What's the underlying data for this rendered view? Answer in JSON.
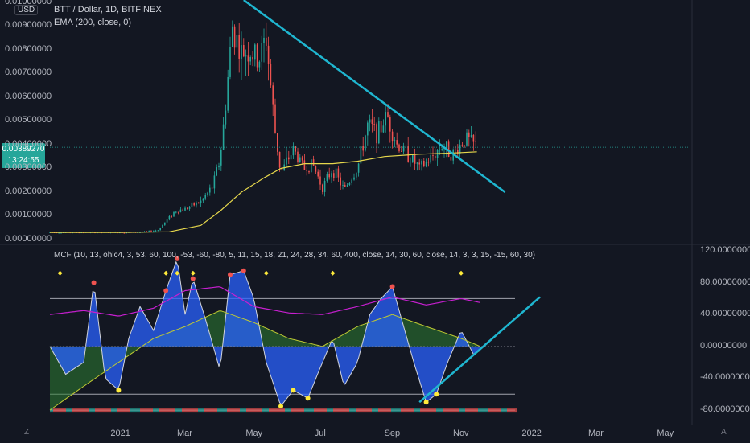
{
  "header": {
    "symbol_title": "BTT / Dollar, 1D, BITFINEX",
    "ema_legend": "EMA (200, close, 0)",
    "currency_tag": "USD",
    "mcf_legend": "MCF (10, 13, ohlc4, 3, 53, 60, 100, -53, -60, -80, 5, 11, 15, 18, 21, 24, 28, 34, 60, 400, close, 14, 30, 60, close, 14, 3, 3, 15, -15, 60, 30)"
  },
  "price_badge": {
    "price": "0.00389270",
    "countdown": "13:24:55"
  },
  "bottom_icons": {
    "left": "Z",
    "right": "A"
  },
  "colors": {
    "background": "#131722",
    "up_candle": "#26a69a",
    "down_candle": "#ef5350",
    "ema": "#e6d74c",
    "trendline": "#1fb6d0",
    "mcf_blue": "#2962ff",
    "mcf_red": "#c62828",
    "mcf_green": "#2e7d32",
    "mcf_magenta": "#c71fd0",
    "marker_yellow": "#ffeb3b"
  },
  "chart_data": [
    {
      "type": "candlestick",
      "title": "BTT / Dollar, 1D, BITFINEX",
      "x_tick_labels": [
        "2021",
        "Mar",
        "May",
        "Jul",
        "Sep",
        "Nov",
        "2022",
        "Mar",
        "May"
      ],
      "x_tick_values": [
        "2021-01-01",
        "2021-03-01",
        "2021-05-01",
        "2021-07-01",
        "2021-09-01",
        "2021-11-01",
        "2022-01-01",
        "2022-03-01",
        "2022-05-01"
      ],
      "y_tick_labels": [
        "0.01000000",
        "0.00900000",
        "0.00800000",
        "0.00700000",
        "0.00600000",
        "0.00500000",
        "0.00400000",
        "0.00300000",
        "0.00200000",
        "0.00100000",
        "0.00000000"
      ],
      "ylim": [
        0.0,
        0.0101
      ],
      "grid": false,
      "price_path": {
        "dates": [
          "2020-11-01",
          "2020-12-01",
          "2020-12-31",
          "2021-01-15",
          "2021-01-25",
          "2021-02-05",
          "2021-02-20",
          "2021-03-01",
          "2021-03-15",
          "2021-03-25",
          "2021-04-01",
          "2021-04-05",
          "2021-04-12",
          "2021-04-20",
          "2021-04-26",
          "2021-05-05",
          "2021-05-12",
          "2021-05-20",
          "2021-05-25",
          "2021-06-05",
          "2021-06-15",
          "2021-06-22",
          "2021-07-01",
          "2021-07-10",
          "2021-07-20",
          "2021-08-01",
          "2021-08-10",
          "2021-08-20",
          "2021-08-27",
          "2021-09-05",
          "2021-09-15",
          "2021-09-25",
          "2021-10-05",
          "2021-10-15",
          "2021-10-25",
          "2021-11-05",
          "2021-11-15"
        ],
        "close": [
          0.0003,
          0.0003,
          0.0003,
          0.0003,
          0.00032,
          0.0004,
          0.0012,
          0.0013,
          0.0016,
          0.0022,
          0.0034,
          0.0052,
          0.009,
          0.0078,
          0.008,
          0.0075,
          0.0085,
          0.0045,
          0.0028,
          0.0038,
          0.003,
          0.0032,
          0.0022,
          0.003,
          0.0021,
          0.003,
          0.0048,
          0.0045,
          0.0053,
          0.004,
          0.0036,
          0.003,
          0.0034,
          0.004,
          0.0036,
          0.0043,
          0.0039
        ]
      },
      "series": [
        {
          "name": "EMA (200, close, 0)",
          "dates": [
            "2020-11-01",
            "2021-01-01",
            "2021-02-15",
            "2021-03-15",
            "2021-04-01",
            "2021-04-20",
            "2021-05-10",
            "2021-05-25",
            "2021-06-15",
            "2021-07-10",
            "2021-08-01",
            "2021-08-25",
            "2021-09-25",
            "2021-10-25",
            "2021-11-15"
          ],
          "values": [
            0.0003,
            0.0003,
            0.00033,
            0.0006,
            0.0012,
            0.002,
            0.0026,
            0.003,
            0.0032,
            0.0032,
            0.0033,
            0.0035,
            0.0036,
            0.00365,
            0.0037
          ]
        }
      ],
      "trendline": {
        "points": [
          [
            "2021-04-22",
            0.0101
          ],
          [
            "2021-12-10",
            0.002
          ]
        ]
      },
      "last_price_line": 0.0038927
    },
    {
      "type": "line",
      "title": "MCF (10, 13, ohlc4, 3, 53, 60, 100, -53, -60, -80, 5, 11, 15, 18, 21, 24, 28, 34, 60, 400, close, 14, 30, 60, close, 14, 3, 3, 15, -15, 60, 30)",
      "y_tick_labels": [
        "120.00000000",
        "80.00000000",
        "40.00000000",
        "0.00000000",
        "-40.00000000",
        "-80.00000000"
      ],
      "ylim": [
        -90,
        125
      ],
      "reference_levels": [
        60,
        -60,
        -80
      ],
      "series": [
        {
          "name": "wave",
          "dates": [
            "2020-11-01",
            "2020-11-15",
            "2020-12-01",
            "2020-12-10",
            "2020-12-20",
            "2021-01-01",
            "2021-01-10",
            "2021-01-20",
            "2021-02-01",
            "2021-02-12",
            "2021-02-22",
            "2021-03-01",
            "2021-03-08",
            "2021-03-20",
            "2021-04-01",
            "2021-04-10",
            "2021-04-22",
            "2021-05-01",
            "2021-05-12",
            "2021-05-25",
            "2021-06-05",
            "2021-06-18",
            "2021-06-28",
            "2021-07-10",
            "2021-07-20",
            "2021-08-01",
            "2021-08-12",
            "2021-08-22",
            "2021-09-01",
            "2021-09-10",
            "2021-09-20",
            "2021-10-01",
            "2021-10-10",
            "2021-10-20",
            "2021-11-01",
            "2021-11-12",
            "2021-11-18"
          ],
          "values": [
            0,
            -35,
            -20,
            80,
            -40,
            -55,
            10,
            50,
            20,
            70,
            110,
            40,
            85,
            30,
            -30,
            90,
            95,
            60,
            -20,
            -75,
            -55,
            -65,
            -30,
            10,
            -50,
            -20,
            40,
            60,
            75,
            30,
            -20,
            -70,
            -60,
            -20,
            20,
            -10,
            -5
          ]
        },
        {
          "name": "momentum",
          "dates": [
            "2020-11-01",
            "2020-12-01",
            "2021-01-01",
            "2021-02-01",
            "2021-03-01",
            "2021-04-01",
            "2021-05-01",
            "2021-06-01",
            "2021-07-01",
            "2021-08-01",
            "2021-09-01",
            "2021-10-01",
            "2021-11-01",
            "2021-11-18"
          ],
          "values": [
            -80,
            -50,
            -20,
            10,
            25,
            45,
            30,
            10,
            0,
            25,
            40,
            25,
            10,
            0
          ]
        },
        {
          "name": "rsi",
          "dates": [
            "2020-11-01",
            "2020-12-01",
            "2021-01-01",
            "2021-02-01",
            "2021-03-01",
            "2021-04-01",
            "2021-05-01",
            "2021-06-01",
            "2021-07-01",
            "2021-08-01",
            "2021-09-01",
            "2021-10-01",
            "2021-11-01",
            "2021-11-18"
          ],
          "values": [
            40,
            45,
            38,
            48,
            70,
            75,
            50,
            42,
            40,
            50,
            62,
            52,
            60,
            55
          ]
        }
      ]
    }
  ]
}
